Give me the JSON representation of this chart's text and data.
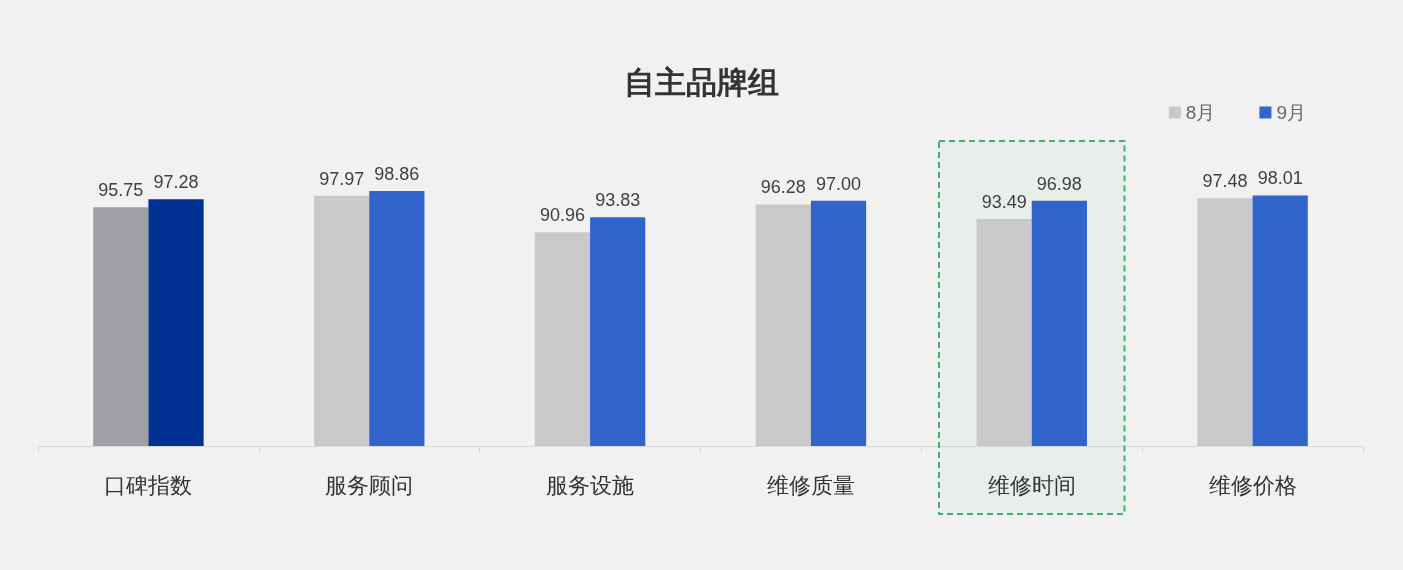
{
  "chart_data": {
    "type": "bar",
    "title": "自主品牌组",
    "categories": [
      "口碑指数",
      "服务顾问",
      "服务设施",
      "维修质量",
      "维修时间",
      "维修价格"
    ],
    "series": [
      {
        "name": "8月",
        "color": "#c9c9c9",
        "colors": [
          "#a0a0a4",
          "#c9c9c9",
          "#c9c9c9",
          "#c9c9c9",
          "#c9c9c9",
          "#c9c9c9"
        ],
        "values": [
          95.75,
          97.97,
          90.96,
          96.28,
          93.49,
          97.48
        ],
        "value_labels": [
          "95.75",
          "97.97",
          "90.96",
          "96.28",
          "93.49",
          "97.48"
        ]
      },
      {
        "name": "9月",
        "color": "#3164cc",
        "colors": [
          "#003193",
          "#3164cc",
          "#3164cc",
          "#3164cc",
          "#3164cc",
          "#3164cc"
        ],
        "values": [
          97.28,
          98.86,
          93.83,
          97.0,
          96.98,
          98.01
        ],
        "value_labels": [
          "97.28",
          "98.86",
          "93.83",
          "97.00",
          "96.98",
          "98.01"
        ]
      }
    ],
    "ylim": [
      50,
      98.86
    ],
    "tick_labels": "x",
    "legend": "top right",
    "bands": [
      {
        "axis": "x",
        "from": "维修时间",
        "to": "维修时间",
        "color": "#3cb371"
      }
    ]
  }
}
